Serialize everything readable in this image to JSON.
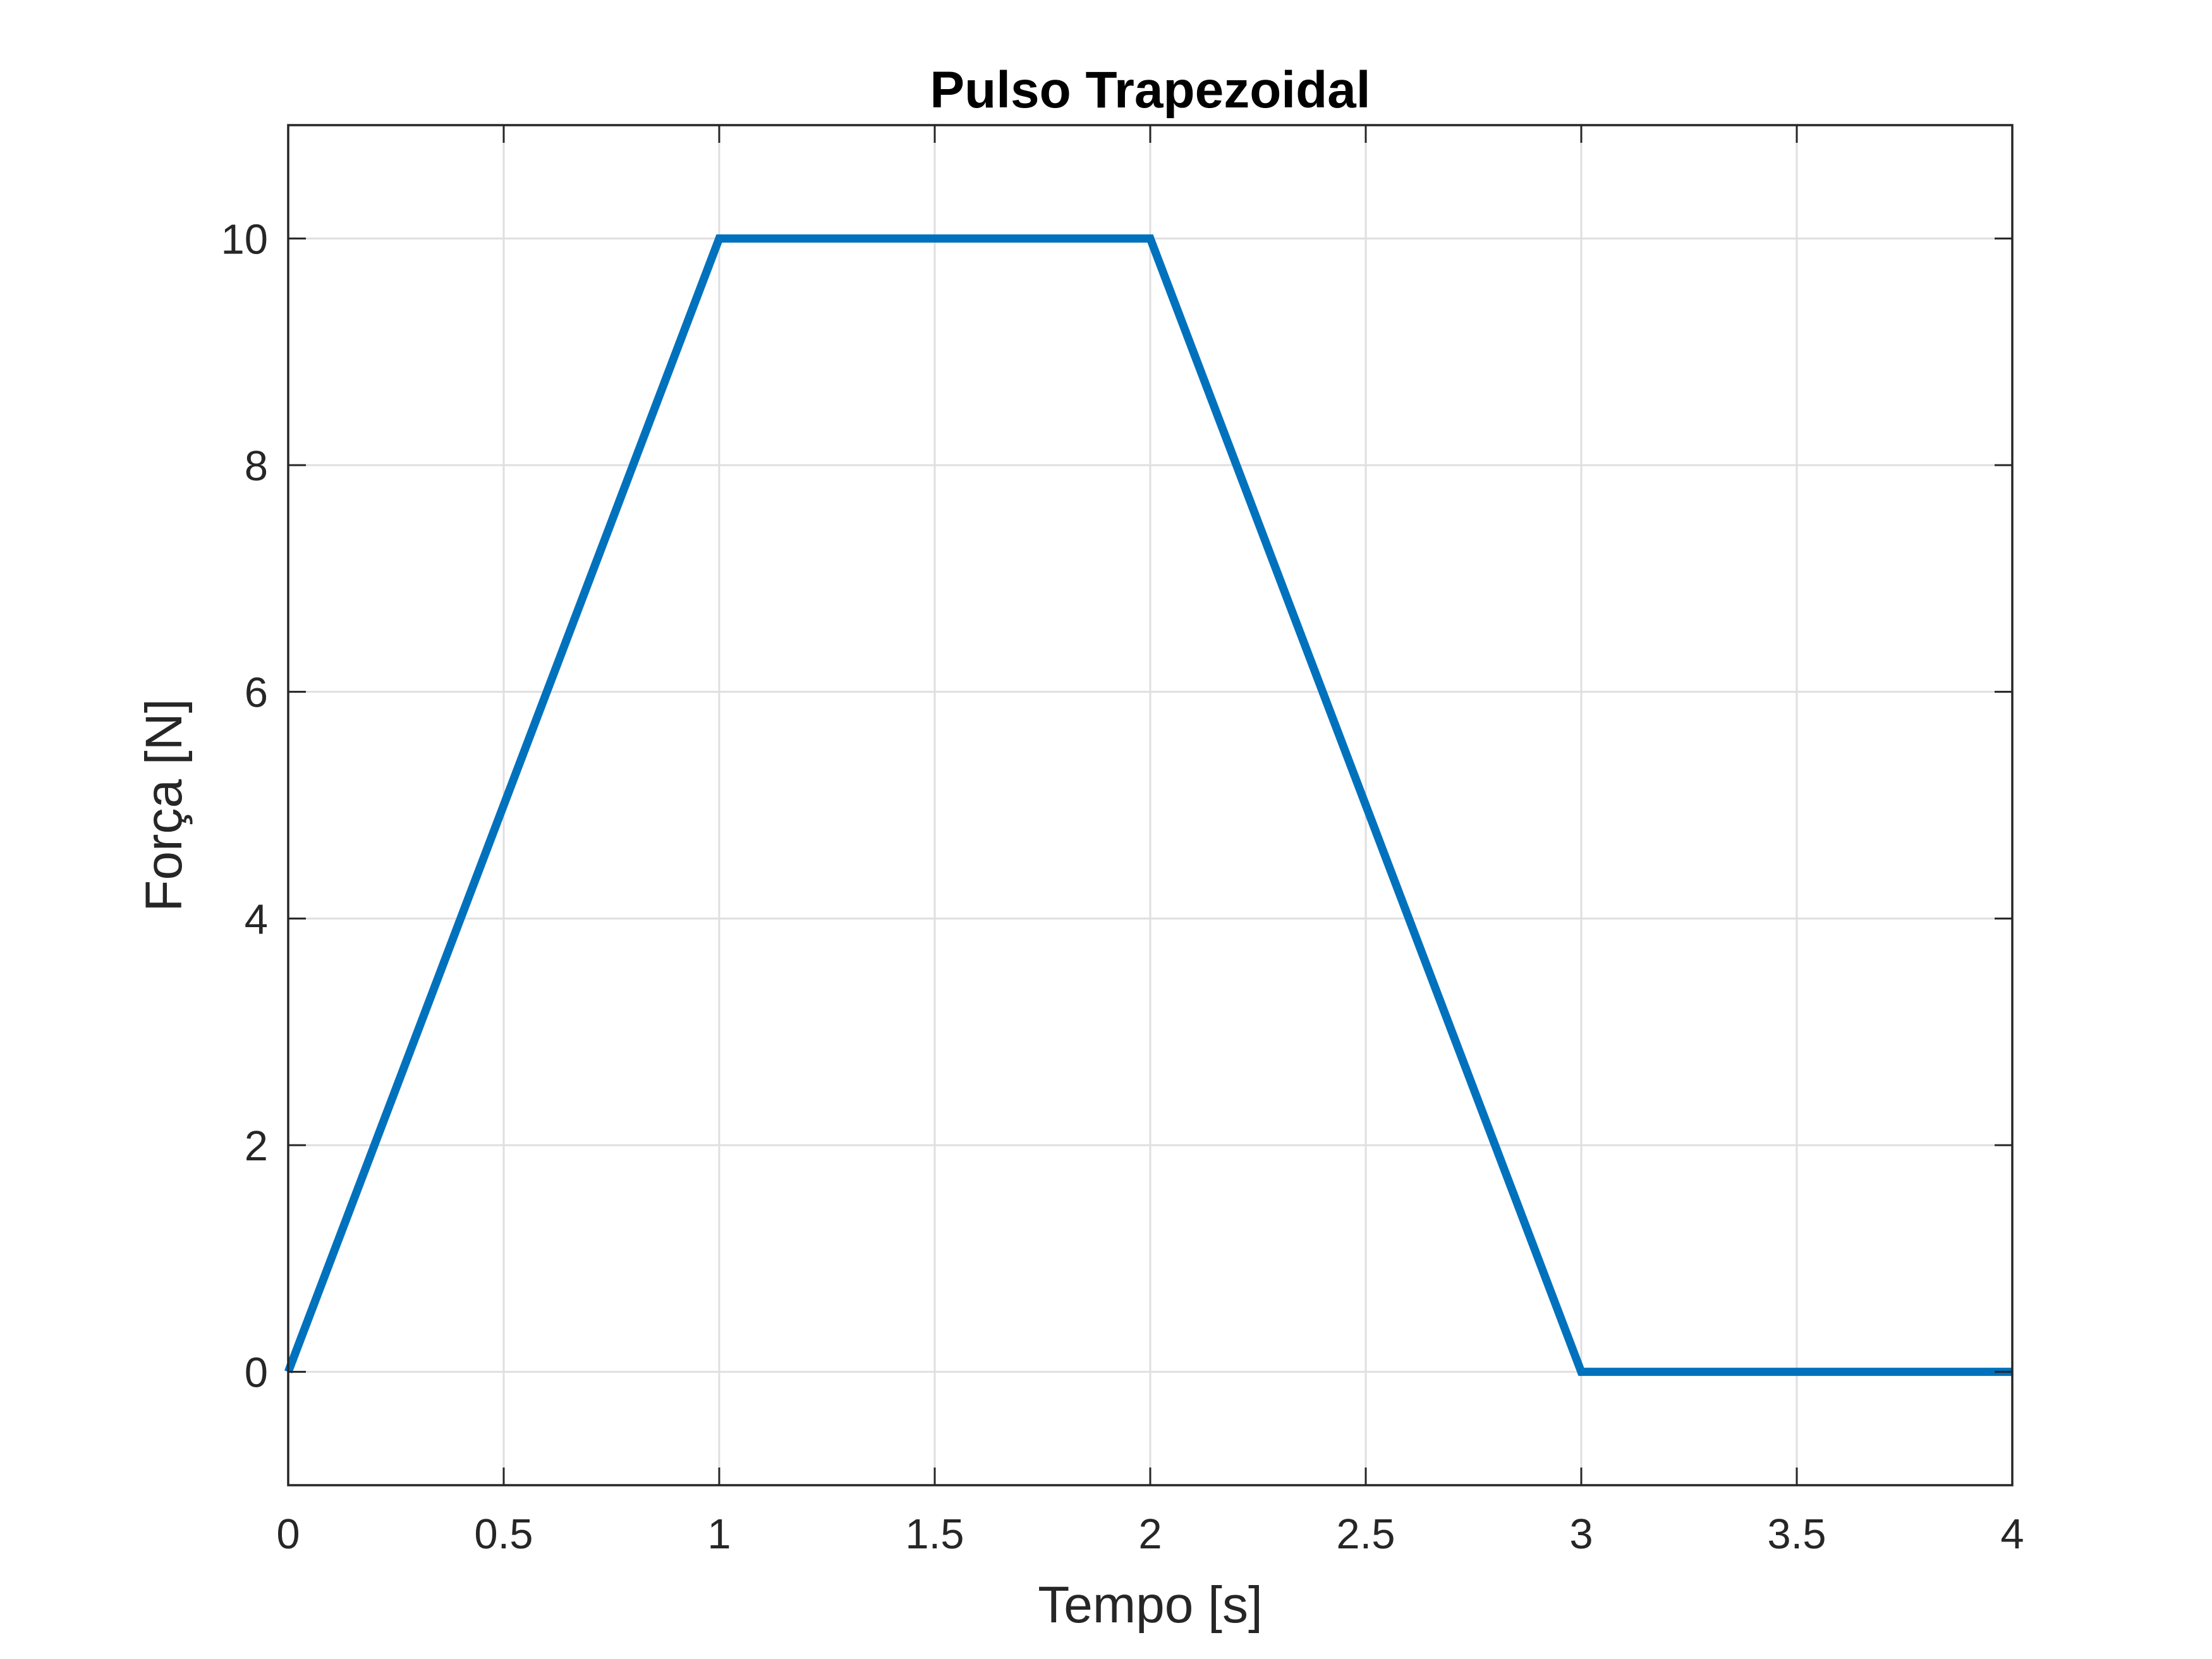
{
  "chart_data": {
    "type": "line",
    "title": "Pulso Trapezoidal",
    "xlabel": "Tempo [s]",
    "ylabel": "Força [N]",
    "xlim": [
      0,
      4
    ],
    "ylim": [
      -1,
      11
    ],
    "xticks": [
      0,
      0.5,
      1,
      1.5,
      2,
      2.5,
      3,
      3.5,
      4
    ],
    "xtick_labels": [
      "0",
      "0.5",
      "1",
      "1.5",
      "2",
      "2.5",
      "3",
      "3.5",
      "4"
    ],
    "yticks": [
      0,
      2,
      4,
      6,
      8,
      10
    ],
    "ytick_labels": [
      "0",
      "2",
      "4",
      "6",
      "8",
      "10"
    ],
    "grid": true,
    "series": [
      {
        "x": [
          0,
          1,
          2,
          3,
          4
        ],
        "y": [
          0,
          10,
          10,
          0,
          0
        ],
        "color": "#0072BD"
      }
    ]
  }
}
